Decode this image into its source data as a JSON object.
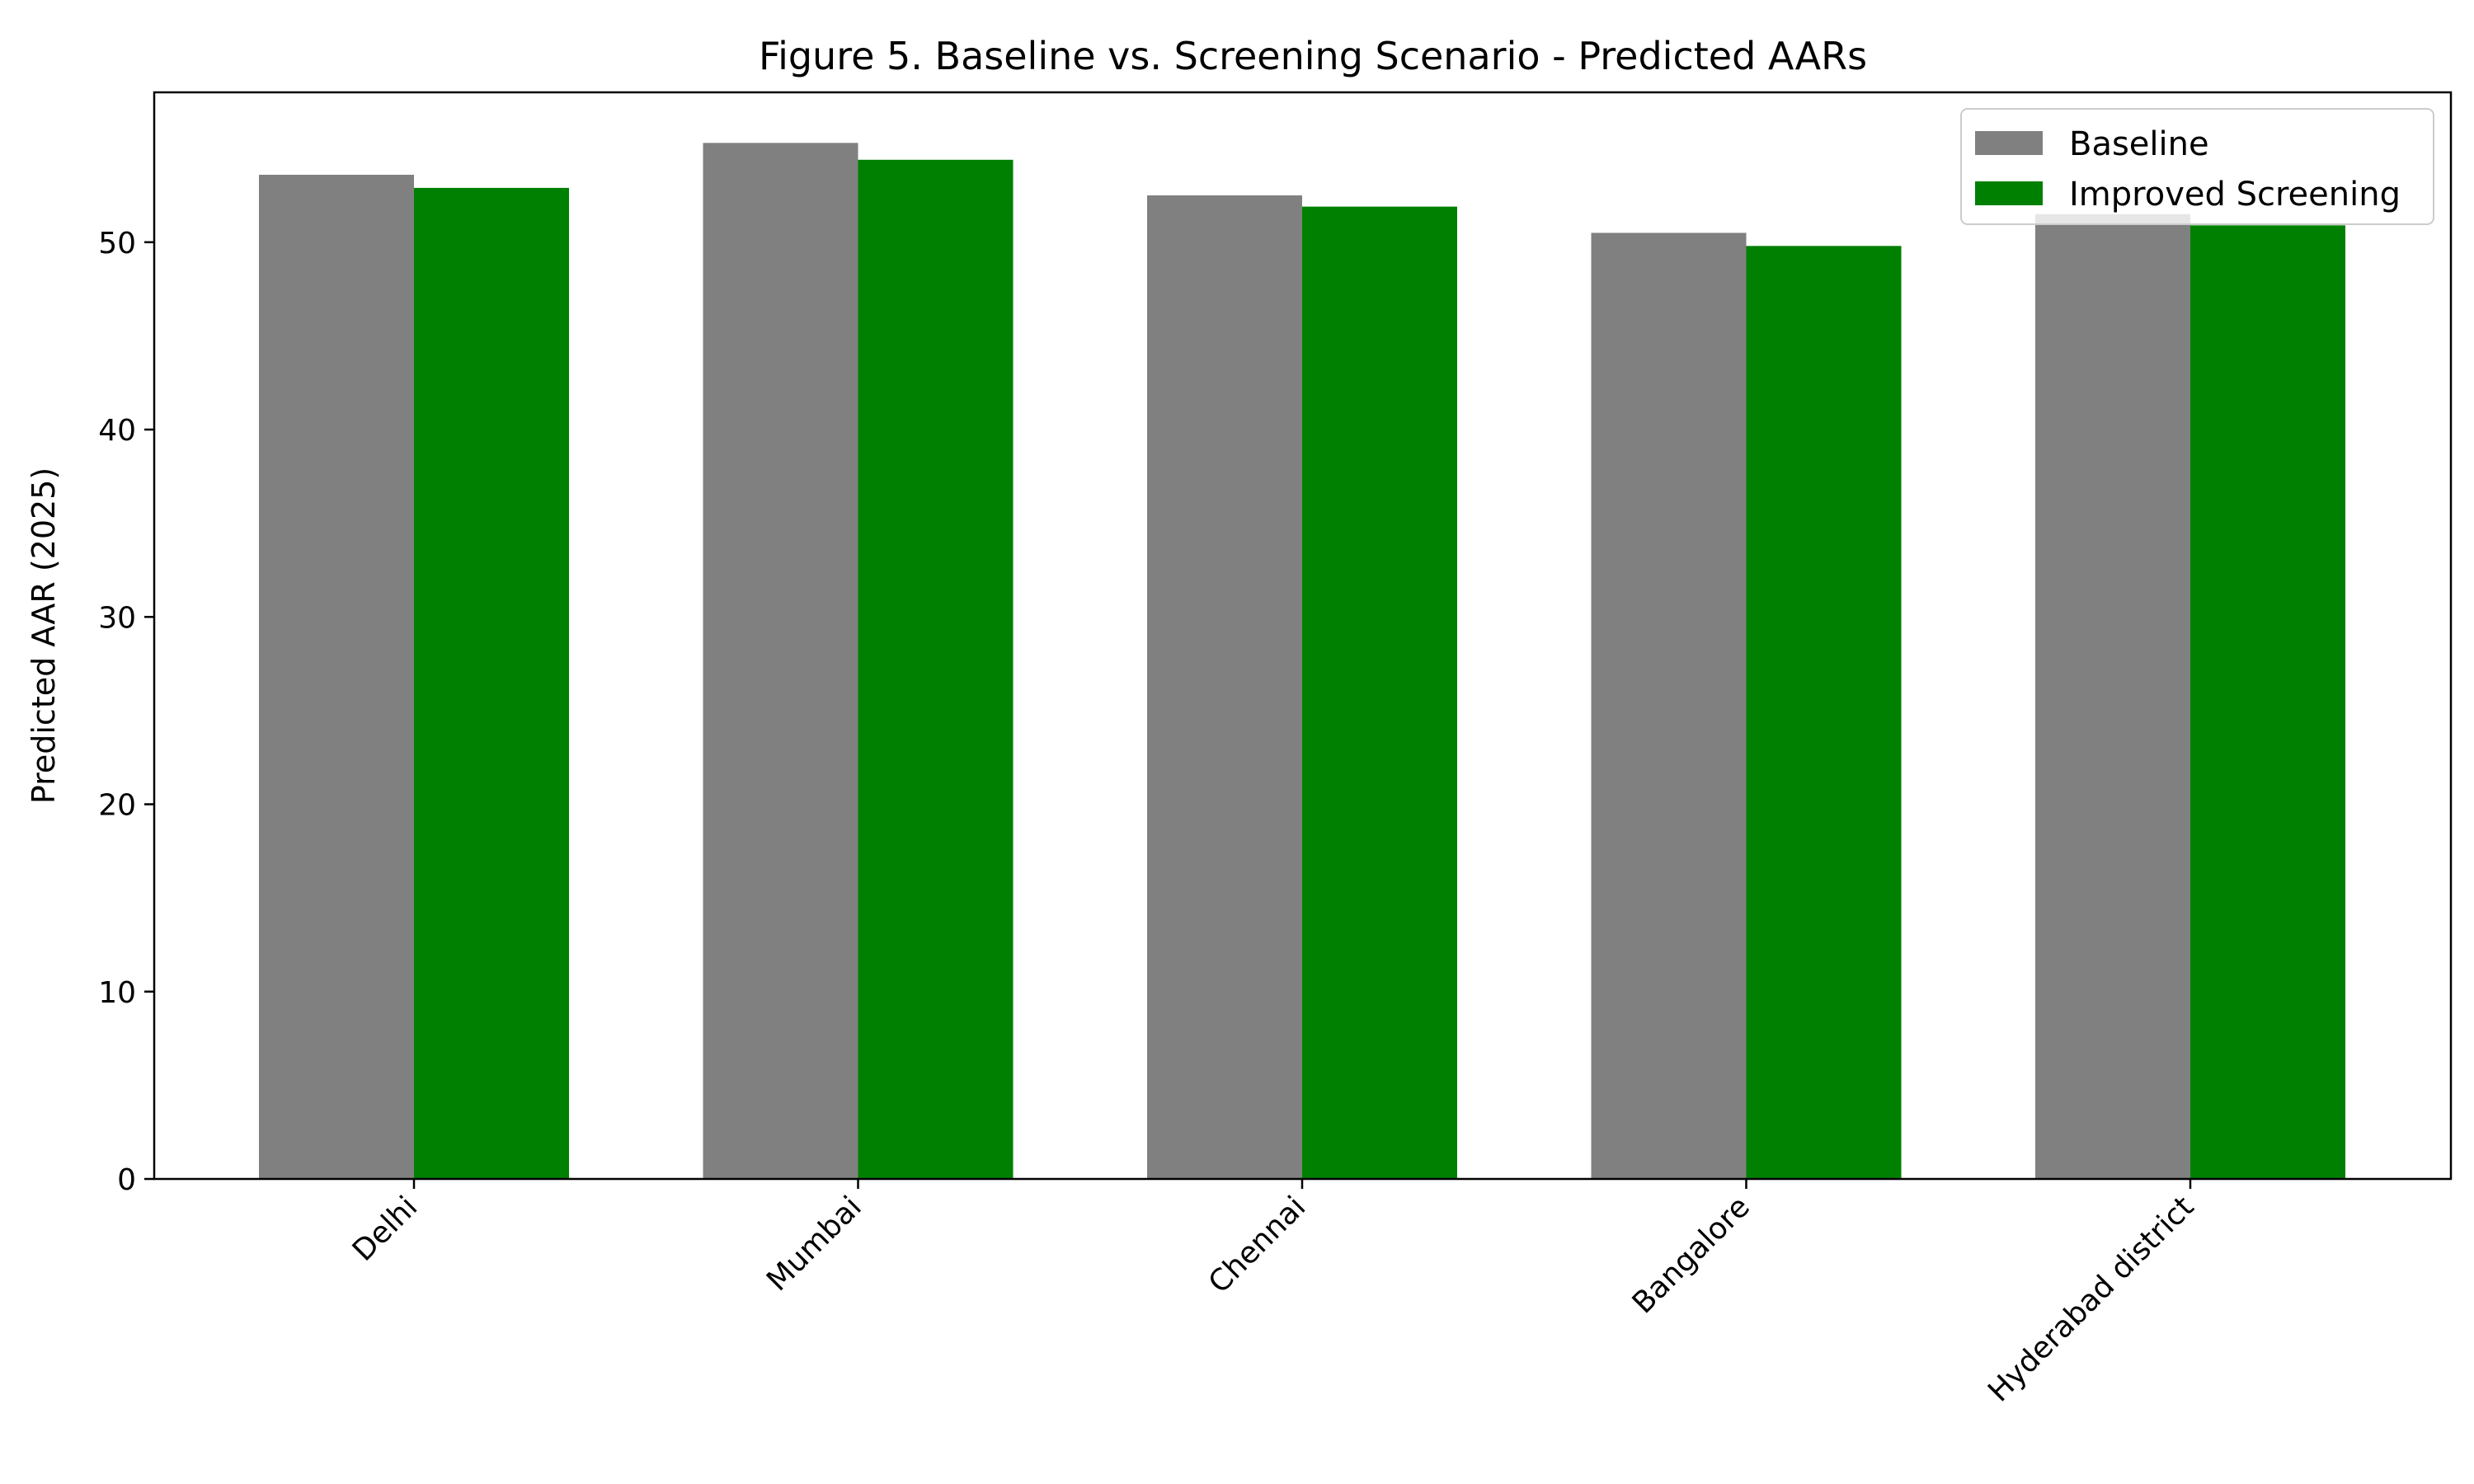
{
  "chart_data": {
    "type": "bar",
    "title": "Figure 5. Baseline vs. Screening Scenario - Predicted AARs",
    "xlabel": "",
    "ylabel": "Predicted AAR (2025)",
    "categories": [
      "Delhi",
      "Mumbai",
      "Chennai",
      "Bangalore",
      "Hyderabad district"
    ],
    "series": [
      {
        "name": "Baseline",
        "color": "#808080",
        "values": [
          53.6,
          55.3,
          52.5,
          50.5,
          51.5
        ]
      },
      {
        "name": "Improved Screening",
        "color": "#008000",
        "values": [
          52.9,
          54.4,
          51.9,
          49.8,
          50.9
        ]
      }
    ],
    "ylim": [
      0,
      58
    ],
    "yticks": [
      0,
      10,
      20,
      30,
      40,
      50
    ],
    "grid": false,
    "legend_position": "top-right"
  }
}
